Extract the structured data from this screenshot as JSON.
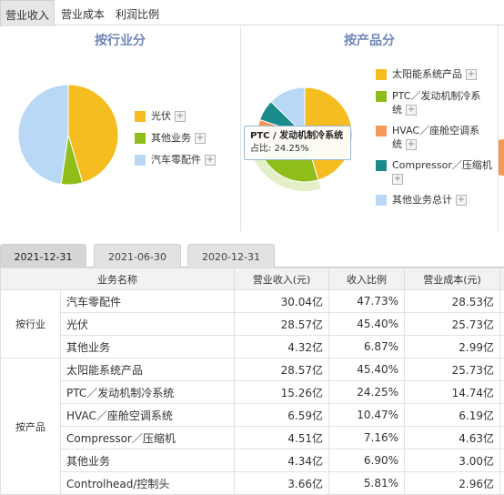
{
  "tabs": [
    {
      "label": "营业收入",
      "active": true
    },
    {
      "label": "营业成本",
      "active": false
    },
    {
      "label": "利润比例",
      "active": false
    }
  ],
  "industry_panel": {
    "title": "按行业分",
    "legend": [
      {
        "label": "光伏",
        "color": "#f5bd1f"
      },
      {
        "label": "其他业务",
        "color": "#8fbe1b"
      },
      {
        "label": "汽车零配件",
        "color": "#b9d8f5"
      }
    ]
  },
  "product_panel": {
    "title": "按产品分",
    "legend": [
      {
        "label_lines": [
          "太阳能系统产品"
        ],
        "color": "#f5bd1f"
      },
      {
        "label_lines": [
          "PTC／发动机制冷系",
          "统"
        ],
        "color": "#8fbe1b"
      },
      {
        "label_lines": [
          "HVAC／座舱空调系",
          "统"
        ],
        "color": "#f39a5a"
      },
      {
        "label_lines": [
          "Compressor／压缩机"
        ],
        "color": "#1a8a8a"
      },
      {
        "label_lines": [
          "其他业务总计"
        ],
        "color": "#b9d8f5"
      }
    ],
    "tooltip": {
      "title": "PTC / 发动机制冷系统",
      "text": "占比: 24.25%"
    }
  },
  "chart_data": [
    {
      "type": "pie",
      "title": "按行业分",
      "categories": [
        "光伏",
        "其他业务",
        "汽车零配件"
      ],
      "values": [
        45.4,
        6.87,
        47.73
      ],
      "colors": [
        "#f5bd1f",
        "#8fbe1b",
        "#b9d8f5"
      ]
    },
    {
      "type": "pie",
      "title": "按产品分",
      "categories": [
        "太阳能系统产品",
        "PTC／发动机制冷系统",
        "HVAC／座舱空调系统",
        "Compressor／压缩机",
        "其他业务总计"
      ],
      "values": [
        45.4,
        24.25,
        10.47,
        7.16,
        12.72
      ],
      "colors": [
        "#f5bd1f",
        "#8fbe1b",
        "#f39a5a",
        "#1a8a8a",
        "#b9d8f5"
      ],
      "highlighted": "PTC／发动机制冷系统"
    }
  ],
  "date_tabs": [
    {
      "label": "2021-12-31",
      "active": true
    },
    {
      "label": "2021-06-30",
      "active": false
    },
    {
      "label": "2020-12-31",
      "active": false
    }
  ],
  "table": {
    "headers": [
      "业务名称",
      "营业收入(元)",
      "收入比例",
      "营业成本(元)"
    ],
    "groups": [
      {
        "label": "按行业",
        "rows": [
          {
            "name": "汽车零配件",
            "revenue": "30.04亿",
            "ratio": "47.73%",
            "cost": "28.53亿"
          },
          {
            "name": "光伏",
            "revenue": "28.57亿",
            "ratio": "45.40%",
            "cost": "25.73亿"
          },
          {
            "name": "其他业务",
            "revenue": "4.32亿",
            "ratio": "6.87%",
            "cost": "2.99亿"
          }
        ]
      },
      {
        "label": "按产品",
        "rows": [
          {
            "name": "太阳能系统产品",
            "revenue": "28.57亿",
            "ratio": "45.40%",
            "cost": "25.73亿"
          },
          {
            "name": "PTC／发动机制冷系统",
            "revenue": "15.26亿",
            "ratio": "24.25%",
            "cost": "14.74亿"
          },
          {
            "name": "HVAC／座舱空调系统",
            "revenue": "6.59亿",
            "ratio": "10.47%",
            "cost": "6.19亿"
          },
          {
            "name": "Compressor／压缩机",
            "revenue": "4.51亿",
            "ratio": "7.16%",
            "cost": "4.63亿"
          },
          {
            "name": "其他业务",
            "revenue": "4.34亿",
            "ratio": "6.90%",
            "cost": "3.00亿"
          },
          {
            "name": "Controlhead/控制头",
            "revenue": "3.66亿",
            "ratio": "5.81%",
            "cost": "2.96亿"
          }
        ]
      }
    ]
  }
}
